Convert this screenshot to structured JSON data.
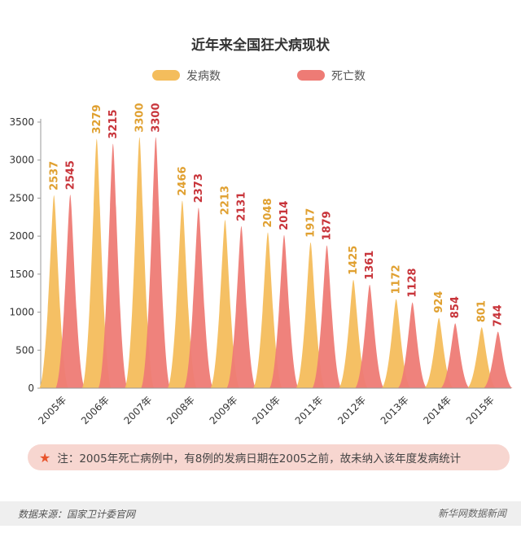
{
  "chart_data": {
    "type": "bar",
    "title": "近年来全国狂犬病现状",
    "categories": [
      "2005年",
      "2006年",
      "2007年",
      "2008年",
      "2009年",
      "2010年",
      "2011年",
      "2012年",
      "2013年",
      "2014年",
      "2015年"
    ],
    "series": [
      {
        "name": "发病数",
        "color": "#f4bd5c",
        "values": [
          2537,
          3279,
          3300,
          2466,
          2213,
          2048,
          1917,
          1425,
          1172,
          924,
          801
        ]
      },
      {
        "name": "死亡数",
        "color": "#ee7b75",
        "values": [
          2545,
          3215,
          3300,
          2373,
          2131,
          2014,
          1879,
          1361,
          1128,
          854,
          744
        ]
      }
    ],
    "label_colors": [
      "#e0a030",
      "#c8343a"
    ],
    "yticks": [
      0,
      500,
      1000,
      1500,
      2000,
      2500,
      3000,
      3500
    ],
    "ylim": [
      0,
      3500
    ],
    "grid": false,
    "legend": "top"
  },
  "note": {
    "icon": "star-icon",
    "text": "注：2005年死亡病例中，有8例的发病日期在2005之前，故未纳入该年度发病统计"
  },
  "footer": {
    "source": "数据来源：国家卫计委官网",
    "brand": "新华网数据新闻"
  }
}
